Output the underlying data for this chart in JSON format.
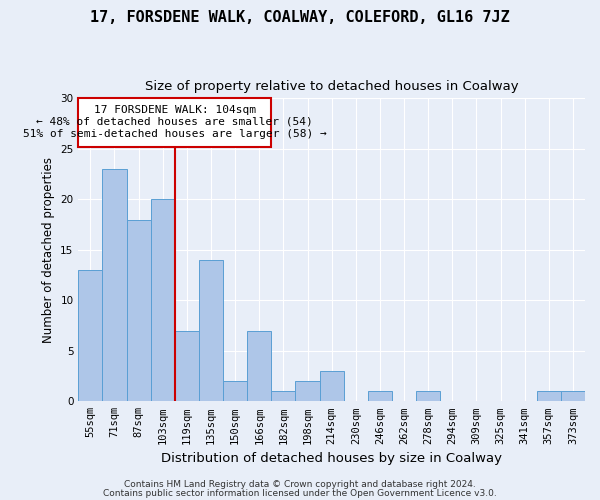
{
  "title": "17, FORSDENE WALK, COALWAY, COLEFORD, GL16 7JZ",
  "subtitle": "Size of property relative to detached houses in Coalway",
  "xlabel": "Distribution of detached houses by size in Coalway",
  "ylabel": "Number of detached properties",
  "footer_line1": "Contains HM Land Registry data © Crown copyright and database right 2024.",
  "footer_line2": "Contains public sector information licensed under the Open Government Licence v3.0.",
  "annotation_line1": "17 FORSDENE WALK: 104sqm",
  "annotation_line2": "← 48% of detached houses are smaller (54)",
  "annotation_line3": "51% of semi-detached houses are larger (58) →",
  "bar_labels": [
    "55sqm",
    "71sqm",
    "87sqm",
    "103sqm",
    "119sqm",
    "135sqm",
    "150sqm",
    "166sqm",
    "182sqm",
    "198sqm",
    "214sqm",
    "230sqm",
    "246sqm",
    "262sqm",
    "278sqm",
    "294sqm",
    "309sqm",
    "325sqm",
    "341sqm",
    "357sqm",
    "373sqm"
  ],
  "bar_values": [
    13,
    23,
    18,
    20,
    7,
    14,
    2,
    7,
    1,
    2,
    3,
    0,
    1,
    0,
    1,
    0,
    0,
    0,
    0,
    1,
    1
  ],
  "bar_color": "#aec6e8",
  "bar_edge_color": "#5a9fd4",
  "vline_x": 3.5,
  "vline_color": "#cc0000",
  "ylim": [
    0,
    30
  ],
  "yticks": [
    0,
    5,
    10,
    15,
    20,
    25,
    30
  ],
  "annotation_box_color": "#ffffff",
  "annotation_box_edge": "#cc0000",
  "background_color": "#e8eef8",
  "title_fontsize": 11,
  "subtitle_fontsize": 9.5,
  "xlabel_fontsize": 9.5,
  "ylabel_fontsize": 8.5,
  "tick_fontsize": 7.5,
  "annotation_fontsize": 8,
  "footer_fontsize": 6.5
}
